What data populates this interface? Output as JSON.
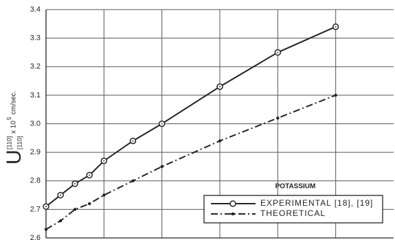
{
  "chart_data": {
    "type": "line",
    "ylabel": {
      "symbol": "U",
      "sup": "[110]",
      "sub": "[110]",
      "factor": "x 10",
      "exp": "5",
      "unit": "cm/sec."
    },
    "annotation": "POTASSIUM",
    "xlim": [
      0,
      6
    ],
    "xticks": [
      1,
      2,
      3,
      4,
      5
    ],
    "ylim": [
      2.6,
      3.4
    ],
    "yticks": [
      2.6,
      2.7,
      2.8,
      2.9,
      {
        "value": 3,
        "label": "3.0"
      },
      3.1,
      3.2,
      3.3,
      3.4
    ],
    "grid": true,
    "legend": "lower right",
    "x": [
      0,
      0.25,
      0.5,
      0.75,
      1,
      1.5,
      2,
      3,
      4,
      5
    ],
    "series": [
      {
        "name": "EXPERIMENTAL [18], [19]",
        "color": "#222222",
        "line_style": "solid",
        "marker": "circle",
        "values": [
          2.71,
          2.75,
          2.79,
          2.82,
          2.87,
          2.94,
          3.0,
          3.13,
          3.25,
          3.34
        ]
      },
      {
        "name": "THEORETICAL",
        "color": "#222222",
        "line_style": "dashed",
        "marker": "dot",
        "values": [
          2.63,
          2.66,
          2.7,
          2.72,
          2.75,
          2.8,
          2.85,
          2.94,
          3.02,
          3.1
        ]
      }
    ]
  }
}
